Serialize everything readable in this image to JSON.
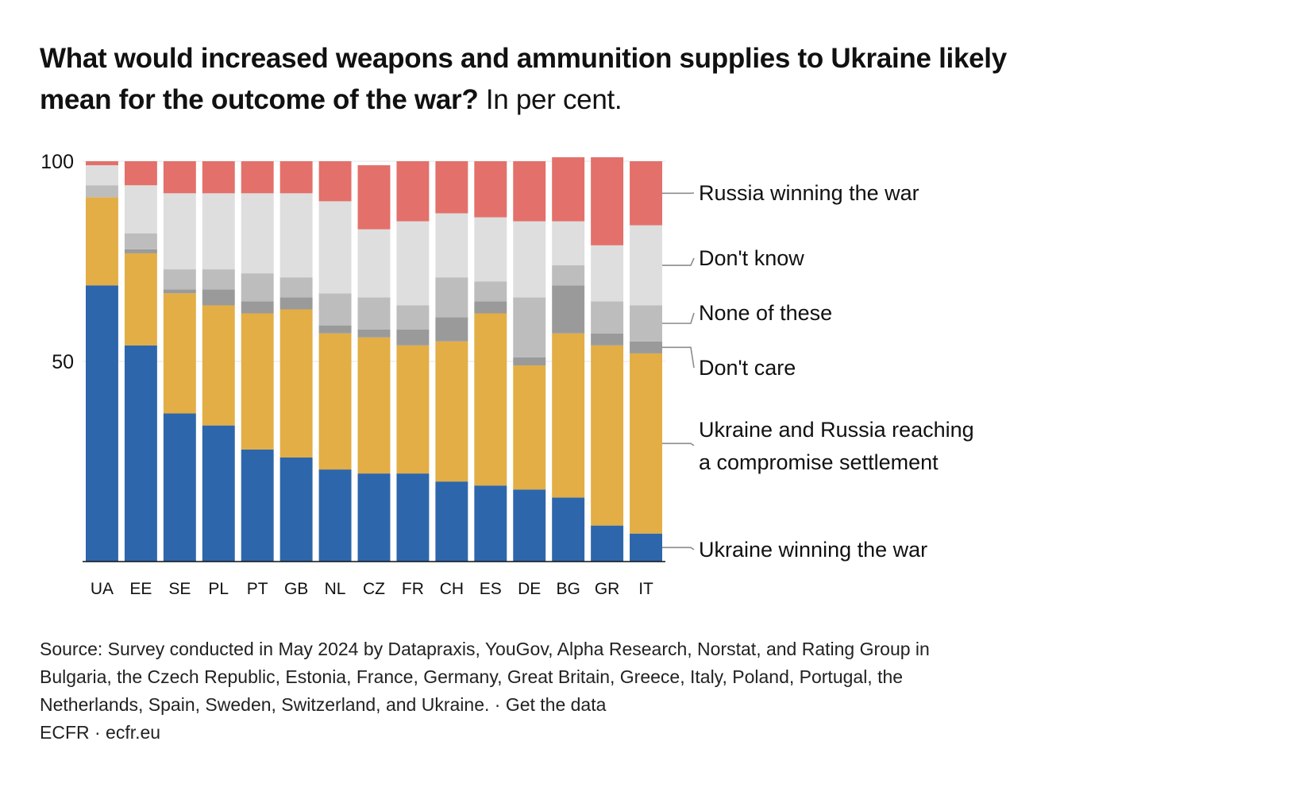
{
  "title": "What would increased weapons and ammunition supplies to Ukraine likely mean for the outcome of the war?",
  "subtitle": "In per cent.",
  "source": {
    "lines": [
      "Source: Survey conducted in May 2024 by Datapraxis, YouGov, Alpha Research, Norstat, and Rating Group in",
      "Bulgaria, the Czech Republic, Estonia, France, Germany, Great Britain, Greece, Italy, Poland, Portugal, the",
      "Netherlands, Spain, Sweden, Switzerland, and Ukraine. · Get the data"
    ],
    "credit": "ECFR · ecfr.eu"
  },
  "chart_data": {
    "type": "bar",
    "stacked": true,
    "categories": [
      "UA",
      "EE",
      "SE",
      "PL",
      "PT",
      "GB",
      "NL",
      "CZ",
      "FR",
      "CH",
      "ES",
      "DE",
      "BG",
      "GR",
      "IT"
    ],
    "ylim": [
      0,
      100
    ],
    "yticks": [
      {
        "value": 100,
        "label": "100"
      },
      {
        "value": 50,
        "label": "50"
      }
    ],
    "grid": true,
    "legend_position": "right, labels aligned to final bar",
    "series": [
      {
        "name": "Ukraine winning the war",
        "color": "#2e66ab",
        "values": [
          69,
          54,
          37,
          34,
          28,
          26,
          23,
          22,
          22,
          20,
          19,
          18,
          16,
          9,
          7
        ]
      },
      {
        "name": "Ukraine and Russia reaching a compromise settlement",
        "color": "#e2ae45",
        "values": [
          22,
          23,
          30,
          30,
          34,
          37,
          34,
          34,
          32,
          35,
          43,
          31,
          41,
          45,
          45
        ]
      },
      {
        "name": "Don't care",
        "color": "#9a9a9a",
        "values": [
          0,
          1,
          1,
          4,
          3,
          3,
          2,
          2,
          4,
          6,
          3,
          2,
          12,
          3,
          3
        ]
      },
      {
        "name": "None of these",
        "color": "#bdbdbd",
        "values": [
          3,
          4,
          5,
          5,
          7,
          5,
          8,
          8,
          6,
          10,
          5,
          15,
          5,
          8,
          9
        ]
      },
      {
        "name": "Don't know",
        "color": "#dedede",
        "values": [
          5,
          12,
          19,
          19,
          20,
          21,
          23,
          17,
          21,
          16,
          16,
          19,
          11,
          14,
          20
        ]
      },
      {
        "name": "Russia winning the war",
        "color": "#e3706a",
        "values": [
          1,
          6,
          8,
          8,
          8,
          8,
          10,
          16,
          15,
          13,
          14,
          15,
          16,
          22,
          16
        ]
      }
    ],
    "legend_labels": [
      {
        "series": "Russia winning the war",
        "lines": [
          "Russia winning the war"
        ]
      },
      {
        "series": "Don't know",
        "lines": [
          "Don't know"
        ]
      },
      {
        "series": "None of these",
        "lines": [
          "None of these"
        ]
      },
      {
        "series": "Don't care",
        "lines": [
          "Don't care"
        ]
      },
      {
        "series": "Ukraine and Russia reaching a compromise settlement",
        "lines": [
          "Ukraine and Russia reaching",
          "a compromise settlement"
        ]
      },
      {
        "series": "Ukraine winning the war",
        "lines": [
          "Ukraine winning the war"
        ]
      }
    ]
  }
}
